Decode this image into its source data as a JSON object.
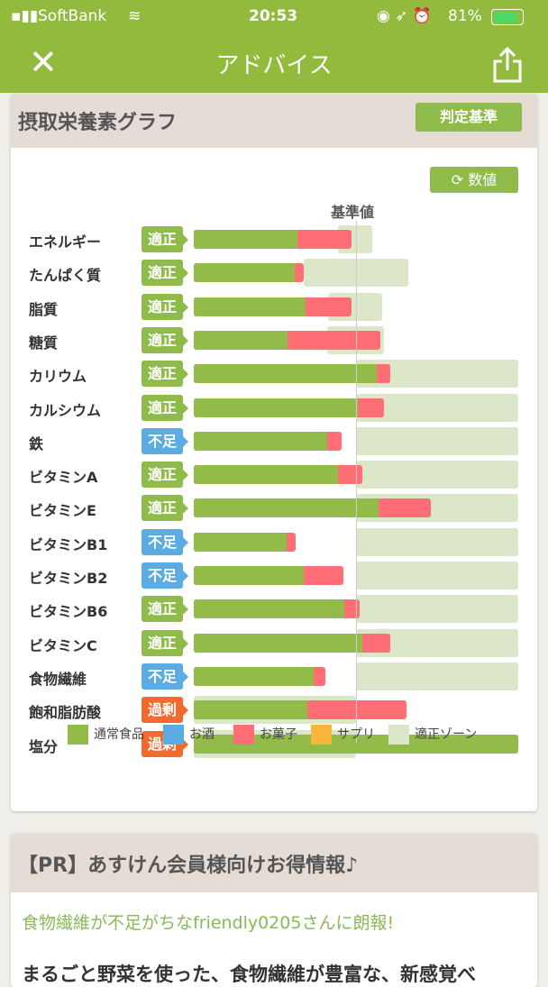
{
  "status": {
    "carrier": "SoftBank",
    "time": "20:53",
    "battery": "81%"
  },
  "nav": {
    "title": "アドバイス"
  },
  "graph_card": {
    "title": "摂取栄養素グラフ",
    "criteria_button": "判定基準",
    "values_button": "数値",
    "baseline_label": "基準値"
  },
  "colors": {
    "normal": "#92bb4a",
    "alcohol": "#5aace2",
    "snack": "#fe6e74",
    "supplement": "#fbb53a",
    "zone": "#dbe7c8",
    "adequate": "#8fbb4a",
    "deficient": "#5aace2",
    "excess": "#f26a2e"
  },
  "chart_data": {
    "type": "bar",
    "unit": "% of reference (基準値=100)",
    "xlim": [
      0,
      200
    ],
    "rows": [
      {
        "name": "エネルギー",
        "status": "適正",
        "kind": "adequate",
        "normal": 64,
        "snack": 33,
        "zone": [
          89,
          110
        ]
      },
      {
        "name": "たんぱく質",
        "status": "適正",
        "kind": "adequate",
        "normal": 62,
        "snack": 6,
        "zone": [
          68,
          132
        ]
      },
      {
        "name": "脂質",
        "status": "適正",
        "kind": "adequate",
        "normal": 69,
        "snack": 28,
        "zone": [
          83,
          116
        ]
      },
      {
        "name": "糖質",
        "status": "適正",
        "kind": "adequate",
        "normal": 58,
        "snack": 57,
        "zone": [
          82,
          117
        ]
      },
      {
        "name": "カリウム",
        "status": "適正",
        "kind": "adequate",
        "normal": 113,
        "snack": 8,
        "zone": [
          100,
          200
        ]
      },
      {
        "name": "カルシウム",
        "status": "適正",
        "kind": "adequate",
        "normal": 101,
        "snack": 16,
        "zone": [
          100,
          200
        ]
      },
      {
        "name": "鉄",
        "status": "不足",
        "kind": "deficient",
        "normal": 82,
        "snack": 9,
        "zone": [
          100,
          200
        ]
      },
      {
        "name": "ビタミンA",
        "status": "適正",
        "kind": "adequate",
        "normal": 89,
        "snack": 15,
        "zone": [
          100,
          200
        ]
      },
      {
        "name": "ビタミンE",
        "status": "適正",
        "kind": "adequate",
        "normal": 114,
        "snack": 32,
        "zone": [
          100,
          200
        ]
      },
      {
        "name": "ビタミンB1",
        "status": "不足",
        "kind": "deficient",
        "normal": 57,
        "snack": 6,
        "zone": [
          100,
          200
        ]
      },
      {
        "name": "ビタミンB2",
        "status": "不足",
        "kind": "deficient",
        "normal": 68,
        "snack": 24,
        "zone": [
          100,
          200
        ]
      },
      {
        "name": "ビタミンB6",
        "status": "適正",
        "kind": "adequate",
        "normal": 93,
        "snack": 9,
        "zone": [
          100,
          200
        ]
      },
      {
        "name": "ビタミンC",
        "status": "適正",
        "kind": "adequate",
        "normal": 104,
        "snack": 17,
        "zone": [
          100,
          200
        ]
      },
      {
        "name": "食物繊維",
        "status": "不足",
        "kind": "deficient",
        "normal": 74,
        "snack": 7,
        "zone": [
          100,
          200
        ]
      },
      {
        "name": "飽和脂肪酸",
        "status": "過剰",
        "kind": "excess",
        "normal": 70,
        "snack": 61,
        "zone": [
          0,
          100
        ]
      },
      {
        "name": "塩分",
        "status": "過剰",
        "kind": "excess",
        "normal": 200,
        "snack": 0,
        "zone": [
          0,
          100
        ]
      }
    ],
    "legend": [
      "通常食品",
      "お酒",
      "お菓子",
      "サプリ",
      "適正ゾーン"
    ]
  },
  "pr": {
    "title": "【PR】あすけん会員様向けお得情報♪",
    "headline": "食物繊維が不足がちなfriendly0205さんに朗報!",
    "body": "まるごと野菜を使った、食物繊維が豊富な、新感覚べ"
  }
}
